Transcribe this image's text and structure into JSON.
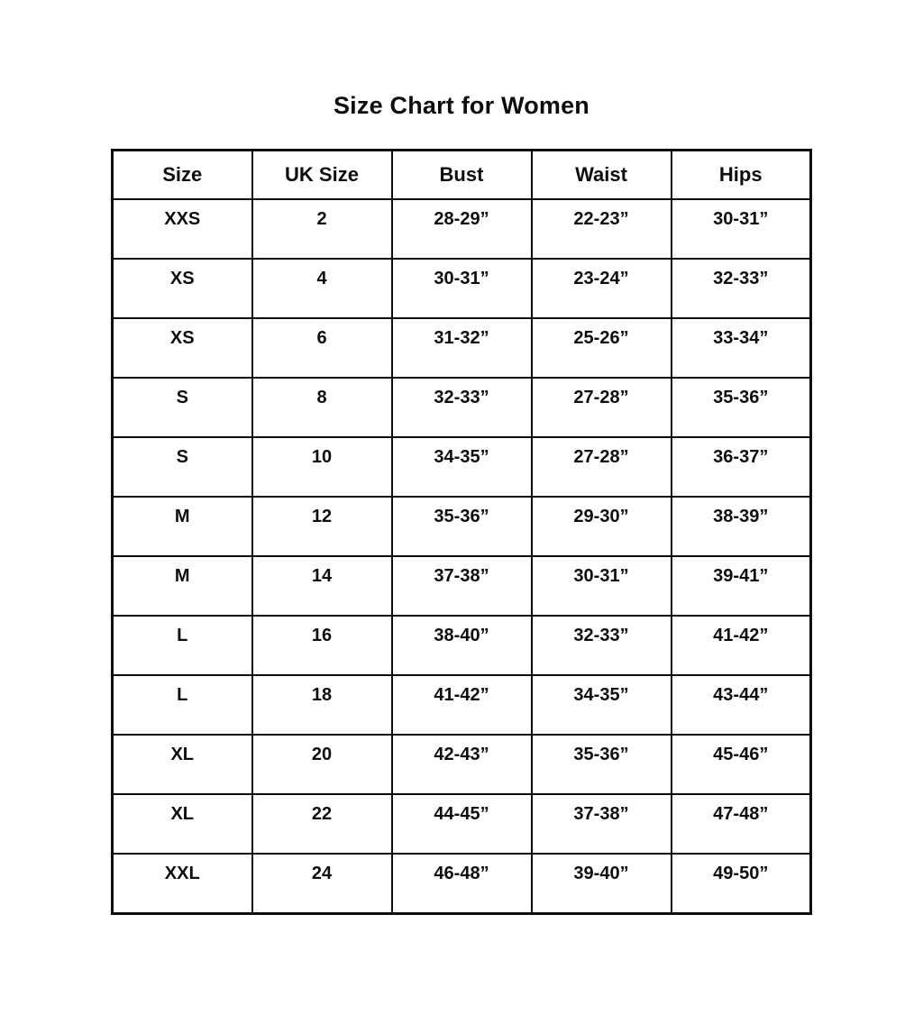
{
  "page": {
    "title": "Size Chart for Women"
  },
  "table": {
    "headers": [
      "Size",
      "UK Size",
      "Bust",
      "Waist",
      "Hips"
    ],
    "rows": [
      [
        "XXS",
        "2",
        "28-29”",
        "22-23”",
        "30-31”"
      ],
      [
        "XS",
        "4",
        "30-31”",
        "23-24”",
        "32-33”"
      ],
      [
        "XS",
        "6",
        "31-32”",
        "25-26”",
        "33-34”"
      ],
      [
        "S",
        "8",
        "32-33”",
        "27-28”",
        "35-36”"
      ],
      [
        "S",
        "10",
        "34-35”",
        "27-28”",
        "36-37”"
      ],
      [
        "M",
        "12",
        "35-36”",
        "29-30”",
        "38-39”"
      ],
      [
        "M",
        "14",
        "37-38”",
        "30-31”",
        "39-41”"
      ],
      [
        "L",
        "16",
        "38-40”",
        "32-33”",
        "41-42”"
      ],
      [
        "L",
        "18",
        "41-42”",
        "34-35”",
        "43-44”"
      ],
      [
        "XL",
        "20",
        "42-43”",
        "35-36”",
        "45-46”"
      ],
      [
        "XL",
        "22",
        "44-45”",
        "37-38”",
        "47-48”"
      ],
      [
        "XXL",
        "24",
        "46-48”",
        "39-40”",
        "49-50”"
      ]
    ]
  },
  "colors": {
    "text": "#0d0d0d",
    "border": "#0d0d0d",
    "background": "#ffffff"
  }
}
